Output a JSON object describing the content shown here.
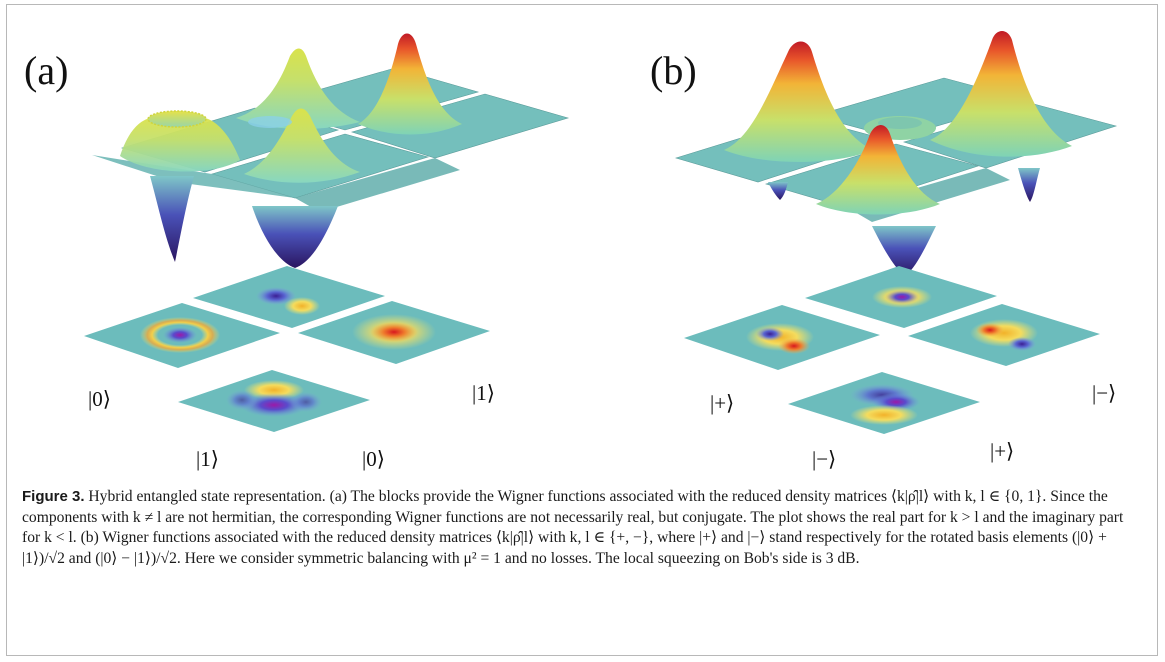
{
  "figure": {
    "panels": [
      {
        "label": "(a)",
        "kets": [
          "|0⟩",
          "|1⟩",
          "|1⟩",
          "|0⟩"
        ]
      },
      {
        "label": "(b)",
        "kets": [
          "|+⟩",
          "|−⟩",
          "|−⟩",
          "|+⟩"
        ]
      }
    ]
  },
  "caption": {
    "label": "Figure 3.",
    "title": "Hybrid entangled state representation.",
    "part_a": "(a) The blocks provide the Wigner functions associated with the reduced density matrices ⟨k|ρ̂|l⟩ with k, l ∈ {0, 1}. Since the components with k ≠ l are not hermitian, the corresponding Wigner functions are not necessarily real, but conjugate. The plot shows the real part for k > l and the imaginary part for k < l.",
    "part_b": "(b) Wigner functions associated with the reduced density matrices ⟨k|ρ̂|l⟩ with k, l ∈ {+, −}, where |+⟩ and |−⟩ stand respectively for the rotated basis elements (|0⟩ + |1⟩)/√2 and (|0⟩ − |1⟩)/√2. Here we consider symmetric balancing with μ² = 1 and no losses. The local squeezing on Bob's side is 3 dB."
  }
}
